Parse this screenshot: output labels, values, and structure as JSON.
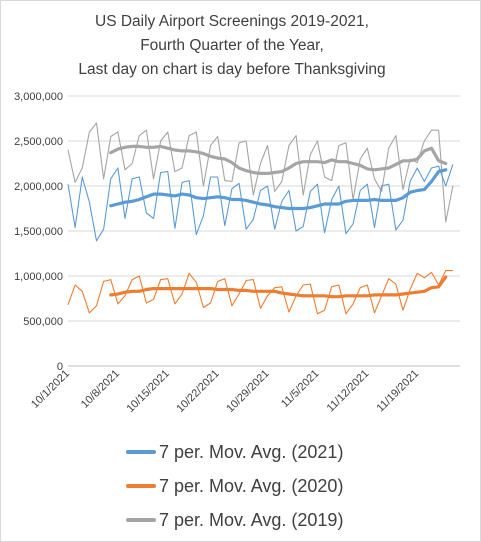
{
  "chart_data": {
    "type": "line",
    "title_lines": [
      "US Daily Airport Screenings 2019-2021,",
      "Fourth Quarter of the Year,",
      "Last day on chart is day before Thanksgiving"
    ],
    "xlabel": "",
    "ylabel": "",
    "ylim": [
      0,
      3000000
    ],
    "y_ticks": [
      0,
      500000,
      1000000,
      1500000,
      2000000,
      2500000,
      3000000
    ],
    "y_tick_labels": [
      "0",
      "500,000",
      "1,000,000",
      "1,500,000",
      "2,000,000",
      "2,500,000",
      "3,000,000"
    ],
    "x_tick_labels": [
      "10/1/2021",
      "10/8/2021",
      "10/15/2021",
      "10/22/2021",
      "10/29/2021",
      "11/5/2021",
      "11/12/2021",
      "11/19/2021"
    ],
    "x_tick_days": [
      0,
      7,
      14,
      21,
      28,
      35,
      42,
      49
    ],
    "x_range_days": [
      0,
      55
    ],
    "grid": "horizontal",
    "legend_position": "bottom",
    "series": [
      {
        "name": "7 per. Mov. Avg. (2019)",
        "color": "#a5a5a5",
        "daily": [
          2400000,
          2040000,
          2200000,
          2600000,
          2700000,
          2080000,
          2550000,
          2600000,
          2180000,
          2250000,
          2560000,
          2620000,
          2080000,
          2500000,
          2600000,
          2160000,
          2200000,
          2560000,
          2600000,
          2000000,
          2450000,
          2550000,
          2060000,
          2050000,
          2480000,
          2500000,
          1900000,
          2250000,
          2450000,
          1940000,
          2050000,
          2450000,
          2560000,
          1900000,
          2350000,
          2500000,
          2100000,
          2060000,
          2450000,
          2480000,
          1850000,
          2300000,
          2420000,
          2080000,
          1940000,
          2420000,
          2560000,
          1960000,
          2300000,
          2260000,
          2500000,
          2620000,
          2620000,
          1600000,
          2000000
        ],
        "ma7": [
          2370000,
          2410000,
          2430000,
          2440000,
          2440000,
          2430000,
          2430000,
          2440000,
          2420000,
          2400000,
          2390000,
          2390000,
          2380000,
          2360000,
          2330000,
          2310000,
          2300000,
          2260000,
          2200000,
          2170000,
          2150000,
          2140000,
          2140000,
          2150000,
          2160000,
          2200000,
          2250000,
          2270000,
          2270000,
          2270000,
          2260000,
          2290000,
          2270000,
          2270000,
          2250000,
          2230000,
          2190000,
          2180000,
          2190000,
          2200000,
          2240000,
          2280000,
          2280000,
          2300000,
          2390000,
          2420000,
          2280000,
          2250000
        ]
      },
      {
        "name": "7 per. Mov. Avg. (2021)",
        "color": "#5b9bd5",
        "daily": [
          2020000,
          1540000,
          2100000,
          1820000,
          1390000,
          1520000,
          2080000,
          2200000,
          1640000,
          2080000,
          2100000,
          1700000,
          1640000,
          2150000,
          2160000,
          1530000,
          2040000,
          2060000,
          1460000,
          1670000,
          2100000,
          2100000,
          1560000,
          1970000,
          2030000,
          1520000,
          1630000,
          1950000,
          2000000,
          1520000,
          1830000,
          1950000,
          1500000,
          1550000,
          1940000,
          2020000,
          1480000,
          1850000,
          2000000,
          1470000,
          1580000,
          1950000,
          2020000,
          1540000,
          2000000,
          2020000,
          1510000,
          1620000,
          2050000,
          2200000,
          2050000,
          2200000,
          2220000,
          2000000,
          2240000
        ],
        "ma7": [
          1780000,
          1800000,
          1820000,
          1830000,
          1850000,
          1880000,
          1910000,
          1910000,
          1900000,
          1890000,
          1910000,
          1900000,
          1870000,
          1860000,
          1870000,
          1880000,
          1870000,
          1850000,
          1850000,
          1840000,
          1820000,
          1800000,
          1790000,
          1770000,
          1760000,
          1750000,
          1750000,
          1750000,
          1760000,
          1780000,
          1800000,
          1800000,
          1800000,
          1830000,
          1840000,
          1840000,
          1840000,
          1850000,
          1840000,
          1840000,
          1840000,
          1870000,
          1930000,
          1950000,
          1960000,
          2050000,
          2160000,
          2180000
        ]
      },
      {
        "name": "7 per. Mov. Avg. (2020)",
        "color": "#ed7d31",
        "daily": [
          680000,
          900000,
          830000,
          590000,
          670000,
          940000,
          960000,
          690000,
          780000,
          960000,
          1000000,
          700000,
          740000,
          960000,
          970000,
          690000,
          800000,
          1030000,
          930000,
          650000,
          700000,
          940000,
          970000,
          670000,
          800000,
          950000,
          960000,
          640000,
          780000,
          870000,
          880000,
          600000,
          780000,
          900000,
          910000,
          580000,
          620000,
          880000,
          900000,
          580000,
          690000,
          870000,
          900000,
          590000,
          780000,
          970000,
          910000,
          620000,
          850000,
          1030000,
          980000,
          1040000,
          900000,
          1060000,
          1060000
        ],
        "ma7": [
          790000,
          800000,
          820000,
          830000,
          830000,
          850000,
          860000,
          860000,
          860000,
          860000,
          860000,
          860000,
          860000,
          860000,
          860000,
          850000,
          850000,
          850000,
          840000,
          840000,
          830000,
          830000,
          830000,
          830000,
          810000,
          800000,
          790000,
          780000,
          780000,
          780000,
          780000,
          770000,
          770000,
          780000,
          780000,
          780000,
          780000,
          790000,
          790000,
          790000,
          790000,
          800000,
          810000,
          820000,
          830000,
          870000,
          880000,
          990000
        ]
      }
    ],
    "legend_order": [
      "7 per. Mov. Avg. (2021)",
      "7 per. Mov. Avg. (2020)",
      "7 per. Mov. Avg. (2019)"
    ]
  }
}
